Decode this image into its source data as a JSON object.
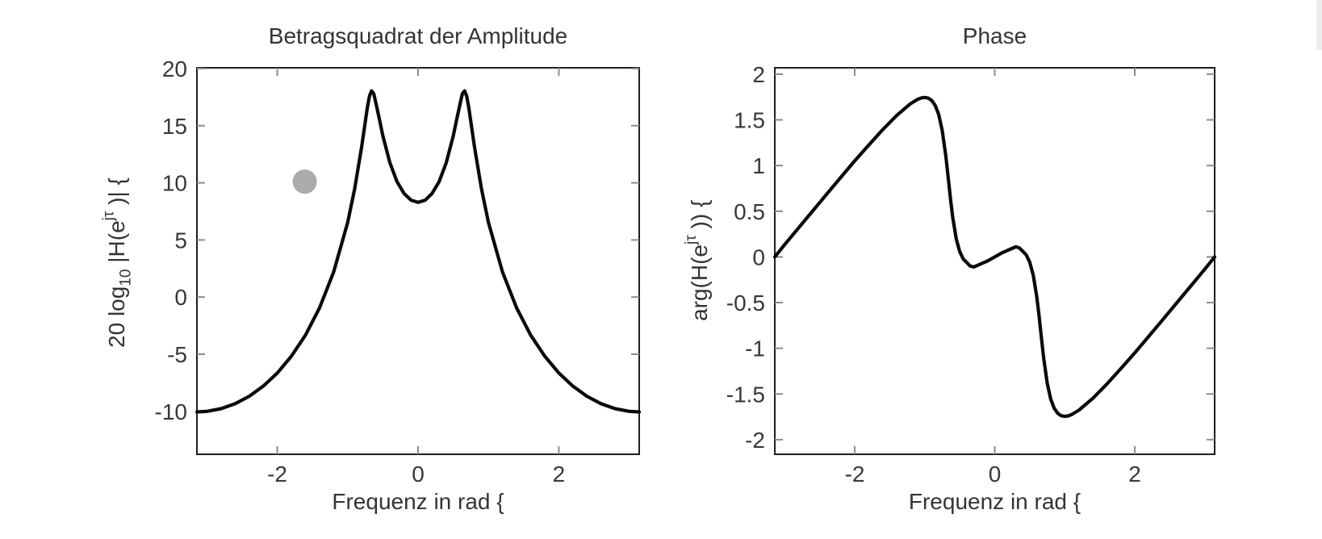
{
  "window": {
    "background_color": "#ffffff",
    "scrollbar_color": "#ededed"
  },
  "chart_data": [
    {
      "type": "line",
      "title": "Betragsquadrat der Amplitude",
      "xlabel": "Frequenz in rad {",
      "ylabel": "20 log10 |H(e jτ )| {",
      "ylabel_parts": [
        {
          "t": "20 log"
        },
        {
          "t": "10",
          "s": "sub"
        },
        {
          "t": " |H(e"
        },
        {
          "t": "jτ",
          "s": "sup"
        },
        {
          "t": " )| {"
        }
      ],
      "xlim": [
        -3.1416,
        3.1416
      ],
      "ylim": [
        -13.76,
        20.07
      ],
      "xticks": [
        -2,
        0,
        2
      ],
      "yticks": [
        20,
        15,
        10,
        5,
        0,
        -5,
        -10
      ],
      "grid": false,
      "legend": null,
      "line_color": "#0a0a0a",
      "series": [
        {
          "name": "magnitude-dB",
          "x": [
            -3.1416,
            -3.0,
            -2.8,
            -2.6,
            -2.4,
            -2.2,
            -2.0,
            -1.8,
            -1.6,
            -1.4,
            -1.2,
            -1.0,
            -0.9,
            -0.8,
            -0.72,
            -0.69,
            -0.66,
            -0.63,
            -0.6,
            -0.55,
            -0.5,
            -0.4,
            -0.3,
            -0.2,
            -0.1,
            0.0,
            0.1,
            0.2,
            0.3,
            0.4,
            0.5,
            0.55,
            0.6,
            0.63,
            0.66,
            0.69,
            0.72,
            0.8,
            0.9,
            1.0,
            1.2,
            1.4,
            1.6,
            1.8,
            2.0,
            2.2,
            2.4,
            2.6,
            2.8,
            3.0,
            3.1416
          ],
          "y": [
            -10.05,
            -10.0,
            -9.77,
            -9.34,
            -8.69,
            -7.8,
            -6.65,
            -5.18,
            -3.33,
            -0.95,
            2.17,
            6.53,
            9.5,
            13.2,
            16.6,
            17.6,
            18.05,
            17.8,
            17.0,
            15.6,
            14.1,
            11.76,
            10.12,
            9.07,
            8.48,
            8.29,
            8.48,
            9.07,
            10.12,
            11.76,
            14.1,
            15.6,
            17.0,
            17.8,
            18.05,
            17.6,
            16.6,
            13.2,
            9.5,
            6.53,
            2.17,
            -0.95,
            -3.33,
            -5.18,
            -6.65,
            -7.8,
            -8.69,
            -9.34,
            -9.77,
            -10.0,
            -10.05
          ]
        }
      ],
      "marker": {
        "x": -1.61,
        "y": 10.1,
        "radius_px": 15,
        "color": "#ababab"
      }
    },
    {
      "type": "line",
      "title": "Phase",
      "xlabel": "Frequenz in rad {",
      "ylabel": "arg(H(e jτ )) {",
      "ylabel_parts": [
        {
          "t": "arg(H(e"
        },
        {
          "t": "jτ",
          "s": "sup"
        },
        {
          "t": " )) {"
        }
      ],
      "xlim": [
        -3.1416,
        3.1416
      ],
      "ylim": [
        -2.16,
        2.07
      ],
      "xticks": [
        -2,
        0,
        2
      ],
      "yticks": [
        2,
        1.5,
        1,
        0.5,
        0,
        -0.5,
        -1,
        -1.5,
        -2
      ],
      "grid": false,
      "legend": null,
      "line_color": "#0a0a0a",
      "series": [
        {
          "name": "phase-rad",
          "x": [
            -3.1416,
            -3.0,
            -2.8,
            -2.6,
            -2.4,
            -2.2,
            -2.0,
            -1.8,
            -1.6,
            -1.4,
            -1.2,
            -1.1,
            -1.05,
            -1.0,
            -0.95,
            -0.9,
            -0.85,
            -0.8,
            -0.75,
            -0.7,
            -0.66,
            -0.63,
            -0.6,
            -0.55,
            -0.5,
            -0.45,
            -0.35,
            -0.3,
            -0.2,
            -0.1,
            0.0,
            0.1,
            0.2,
            0.3,
            0.35,
            0.45,
            0.5,
            0.55,
            0.6,
            0.63,
            0.66,
            0.7,
            0.75,
            0.8,
            0.85,
            0.9,
            0.95,
            1.0,
            1.05,
            1.1,
            1.2,
            1.4,
            1.6,
            1.8,
            2.0,
            2.2,
            2.4,
            2.6,
            2.8,
            3.0,
            3.1416
          ],
          "y": [
            0,
            0.135,
            0.319,
            0.503,
            0.687,
            0.87,
            1.051,
            1.224,
            1.393,
            1.549,
            1.679,
            1.725,
            1.74,
            1.745,
            1.738,
            1.712,
            1.657,
            1.558,
            1.385,
            1.112,
            0.833,
            0.618,
            0.43,
            0.199,
            0.058,
            -0.023,
            -0.1,
            -0.11,
            -0.077,
            -0.043,
            0,
            0.043,
            0.077,
            0.11,
            0.1,
            0.023,
            -0.058,
            -0.199,
            -0.43,
            -0.618,
            -0.833,
            -1.112,
            -1.385,
            -1.558,
            -1.657,
            -1.712,
            -1.738,
            -1.745,
            -1.74,
            -1.725,
            -1.679,
            -1.549,
            -1.393,
            -1.224,
            -1.051,
            -0.87,
            -0.687,
            -0.503,
            -0.319,
            -0.135,
            0
          ]
        }
      ],
      "marker": null
    }
  ]
}
